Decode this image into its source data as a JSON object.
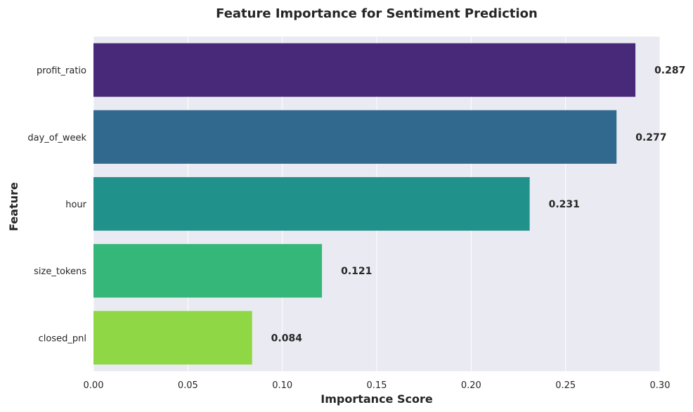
{
  "chart_data": {
    "type": "bar",
    "orientation": "horizontal",
    "title": "Feature Importance for Sentiment Prediction",
    "xlabel": "Importance Score",
    "ylabel": "Feature",
    "categories": [
      "profit_ratio",
      "day_of_week",
      "hour",
      "size_tokens",
      "closed_pnl"
    ],
    "values": [
      0.287,
      0.277,
      0.231,
      0.121,
      0.084
    ],
    "value_labels": [
      "0.287",
      "0.277",
      "0.231",
      "0.121",
      "0.084"
    ],
    "colors": [
      "#482878",
      "#31688e",
      "#21918c",
      "#35b779",
      "#8fd744"
    ],
    "xlim": [
      0,
      0.3
    ],
    "xticks": [
      0.0,
      0.05,
      0.1,
      0.15,
      0.2,
      0.25,
      0.3
    ],
    "xtick_labels": [
      "0.00",
      "0.05",
      "0.10",
      "0.15",
      "0.20",
      "0.25",
      "0.30"
    ],
    "grid": true,
    "background_color": "#eaeaf2",
    "grid_color": "#ffffff"
  }
}
